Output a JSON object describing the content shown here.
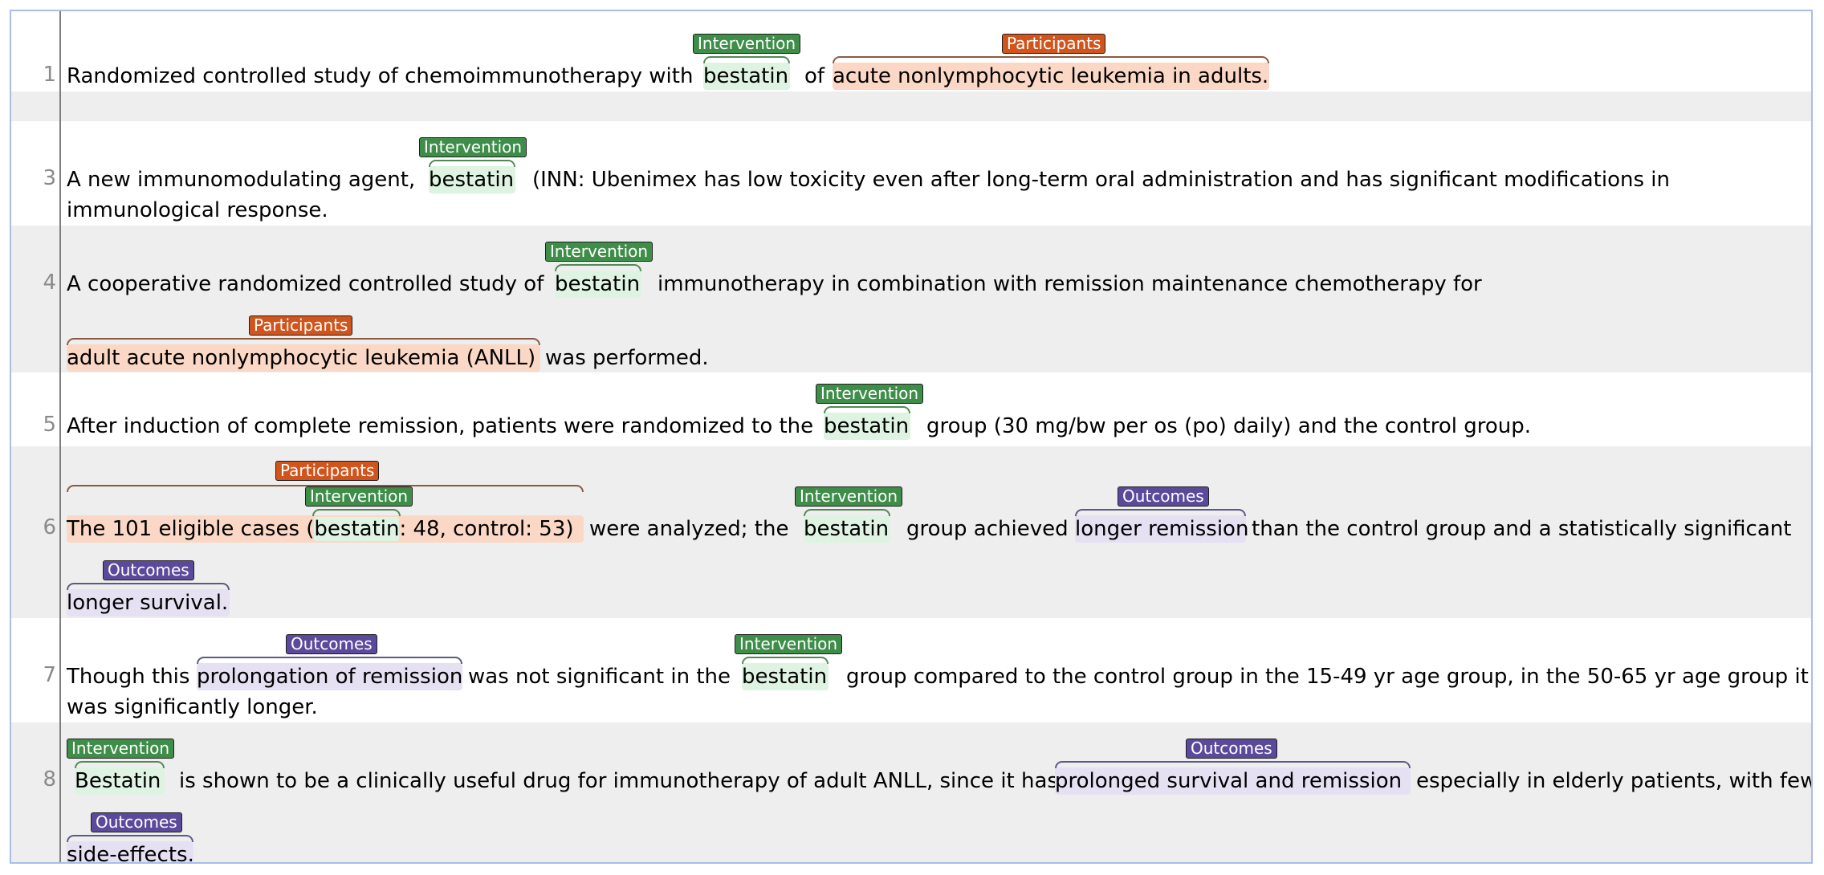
{
  "labels": {
    "intervention": "Intervention",
    "participants": "Participants",
    "outcomes": "Outcomes"
  },
  "colors": {
    "intervention_tag": "#3e8e4a",
    "intervention_bg": "#dff3e3",
    "participants_tag": "#d0541c",
    "participants_bg": "#fbd8c6",
    "outcomes_tag": "#5b4a9c",
    "outcomes_bg": "#e5e0f2",
    "frame_border": "#a9bde8"
  },
  "lines": [
    {
      "number": "1",
      "segments": {
        "a": "Randomized controlled study of chemoimmunotherapy with",
        "b": "bestatin",
        "c": "of",
        "d": "acute nonlymphocytic leukemia in adults."
      }
    },
    {
      "number": "",
      "segments": {}
    },
    {
      "number": "3",
      "segments": {
        "a": "A new immunomodulating agent,",
        "b": "bestatin",
        "c": "(INN: Ubenimex has low toxicity even after long-term oral administration and has significant modifications in",
        "d": "immunological response."
      }
    },
    {
      "number": "4",
      "segments": {
        "a": "A cooperative randomized controlled study of",
        "b": "bestatin",
        "c": "immunotherapy in combination with remission maintenance chemotherapy for",
        "d": "adult acute nonlymphocytic leukemia (ANLL)",
        "e": "was performed."
      }
    },
    {
      "number": "5",
      "segments": {
        "a": "After induction of complete remission, patients were randomized to the",
        "b": "bestatin",
        "c": "group (30 mg/bw per os (po) daily) and the control group."
      }
    },
    {
      "number": "6",
      "segments": {
        "a": "The 101 eligible cases (",
        "b": "bestatin",
        "c": ": 48, control: 53)",
        "d": "were analyzed; the",
        "e": "bestatin",
        "f": "group achieved",
        "g": "longer remission",
        "h": "than the control group and a statistically significant",
        "i": "longer survival."
      }
    },
    {
      "number": "7",
      "segments": {
        "a": "Though this",
        "b": "prolongation of remission",
        "c": "was not significant in the",
        "d": "bestatin",
        "e": "group compared to the control group in the 15-49 yr age group, in the 50-65 yr age group it",
        "f": "was significantly longer."
      }
    },
    {
      "number": "8",
      "segments": {
        "a": "Bestatin",
        "b": "is shown to be a clinically useful drug for immunotherapy of adult ANLL, since it has",
        "c": "prolonged survival and remission",
        "d": "especially in elderly patients, with few",
        "e": "side-effects."
      }
    }
  ]
}
